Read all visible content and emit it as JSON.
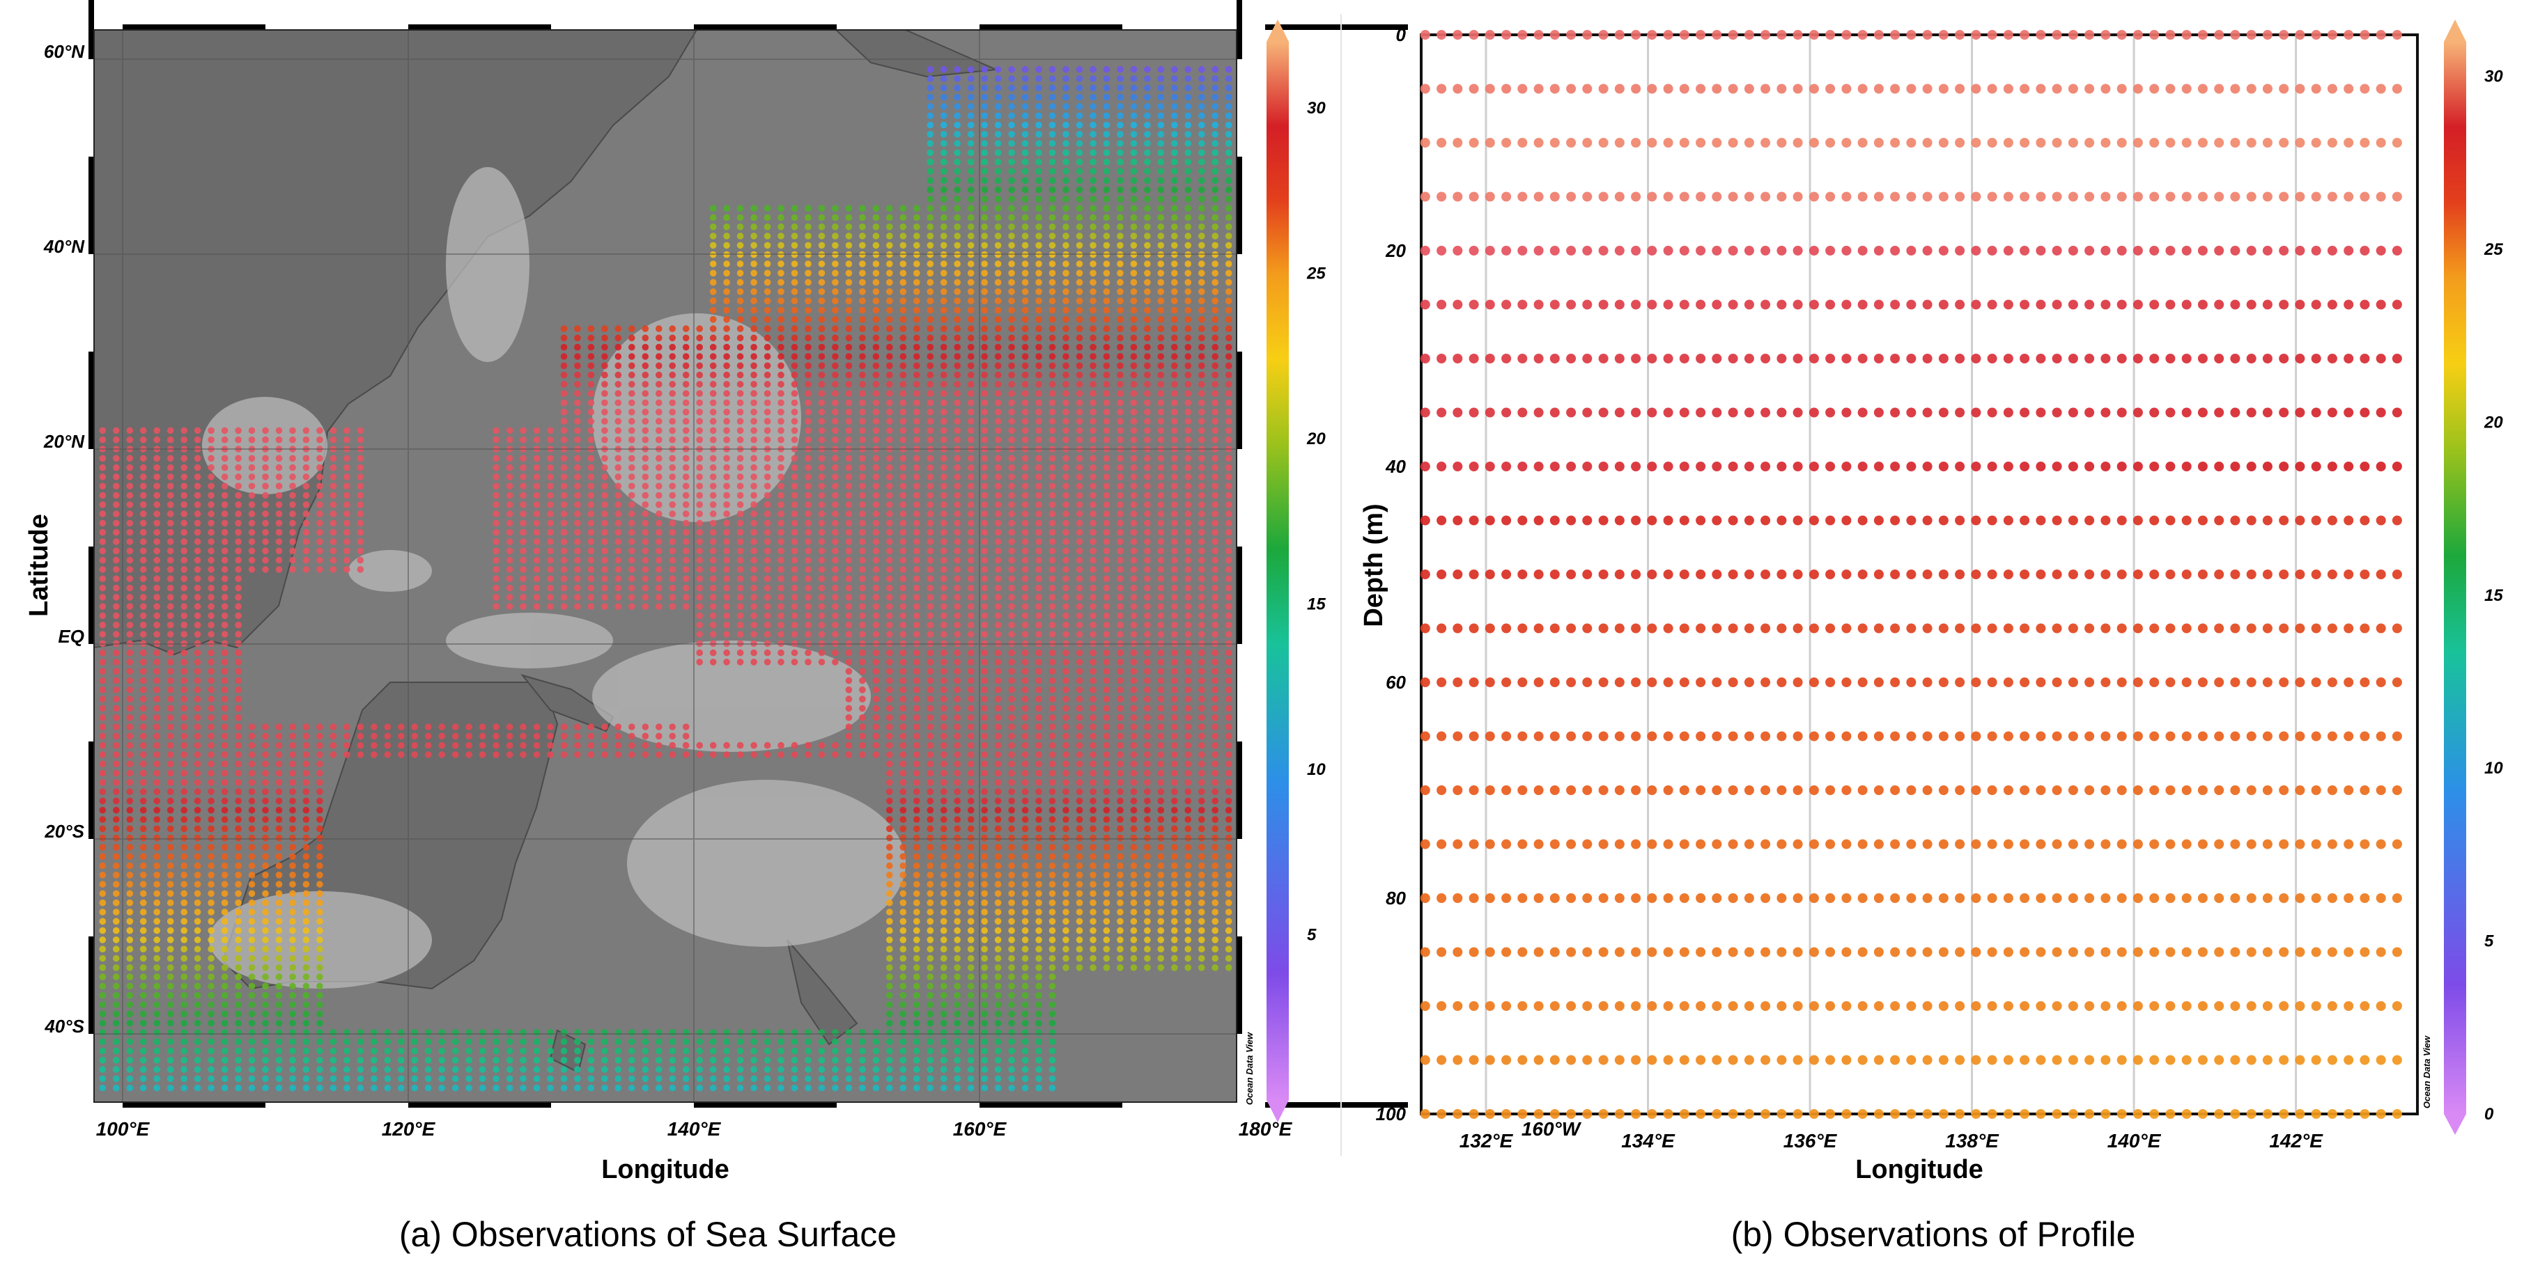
{
  "panel_a": {
    "caption": "(a) Observations of Sea Surface",
    "xlabel": "Longitude",
    "ylabel": "Latitude",
    "x_ticks": [
      "100°E",
      "120°E",
      "140°E",
      "160°E",
      "180°E",
      "160°W"
    ],
    "y_ticks": [
      "60°N",
      "40°N",
      "20°N",
      "EQ",
      "20°S",
      "40°S"
    ],
    "watermark": "Ocean Data View",
    "colorbar": {
      "ticks": [
        "5",
        "10",
        "15",
        "20",
        "25",
        "30"
      ],
      "min": 0,
      "max": 32
    }
  },
  "panel_b": {
    "caption": "(b) Observations of Profile",
    "xlabel": "Longitude",
    "ylabel": "Depth (m)",
    "x_ticks": [
      "132°E",
      "134°E",
      "136°E",
      "138°E",
      "140°E",
      "142°E"
    ],
    "y_ticks": [
      "0",
      "20",
      "40",
      "60",
      "80",
      "100"
    ],
    "watermark": "Ocean Data View",
    "colorbar": {
      "ticks": [
        "0",
        "5",
        "10",
        "15",
        "20",
        "25",
        "30"
      ],
      "min": 0,
      "max": 31
    }
  },
  "chart_data": [
    {
      "type": "scatter",
      "description_kind": "map",
      "xlabel": "Longitude",
      "ylabel": "Latitude",
      "xlim": [
        98,
        178
      ],
      "xlim_note_units": "degrees east (180 = 180°E, 200 = 160°W)",
      "ylim": [
        -47,
        63
      ],
      "grid": true,
      "colorbar_range": [
        0,
        32
      ],
      "colormap": [
        "#c56cf0",
        "#7e4be8",
        "#3d7be6",
        "#1fb3e0",
        "#17c08c",
        "#1ca83c",
        "#72b51f",
        "#f0c21a",
        "#f39c1c",
        "#e8571b",
        "#d41f26",
        "#e85c6a",
        "#f6a66e"
      ]
    },
    {
      "type": "scatter",
      "xlabel": "Longitude",
      "ylabel": "Depth (m)",
      "xlim": [
        131.2,
        143.5
      ],
      "ylim": [
        100,
        0
      ],
      "grid": true,
      "depth_levels": [
        0,
        5,
        10,
        15,
        20,
        25,
        30,
        35,
        40,
        45,
        50,
        55,
        60,
        65,
        70,
        75,
        80,
        85,
        90,
        95,
        100
      ],
      "value_by_depth": [
        29,
        29.5,
        29.8,
        29.5,
        28,
        27.3,
        27,
        26.8,
        26.5,
        25.5,
        25.2,
        24.5,
        24.3,
        23.5,
        23.2,
        22.8,
        22.6,
        22.3,
        22,
        21.6,
        21.3
      ],
      "colorbar_range": [
        0,
        31
      ]
    }
  ]
}
